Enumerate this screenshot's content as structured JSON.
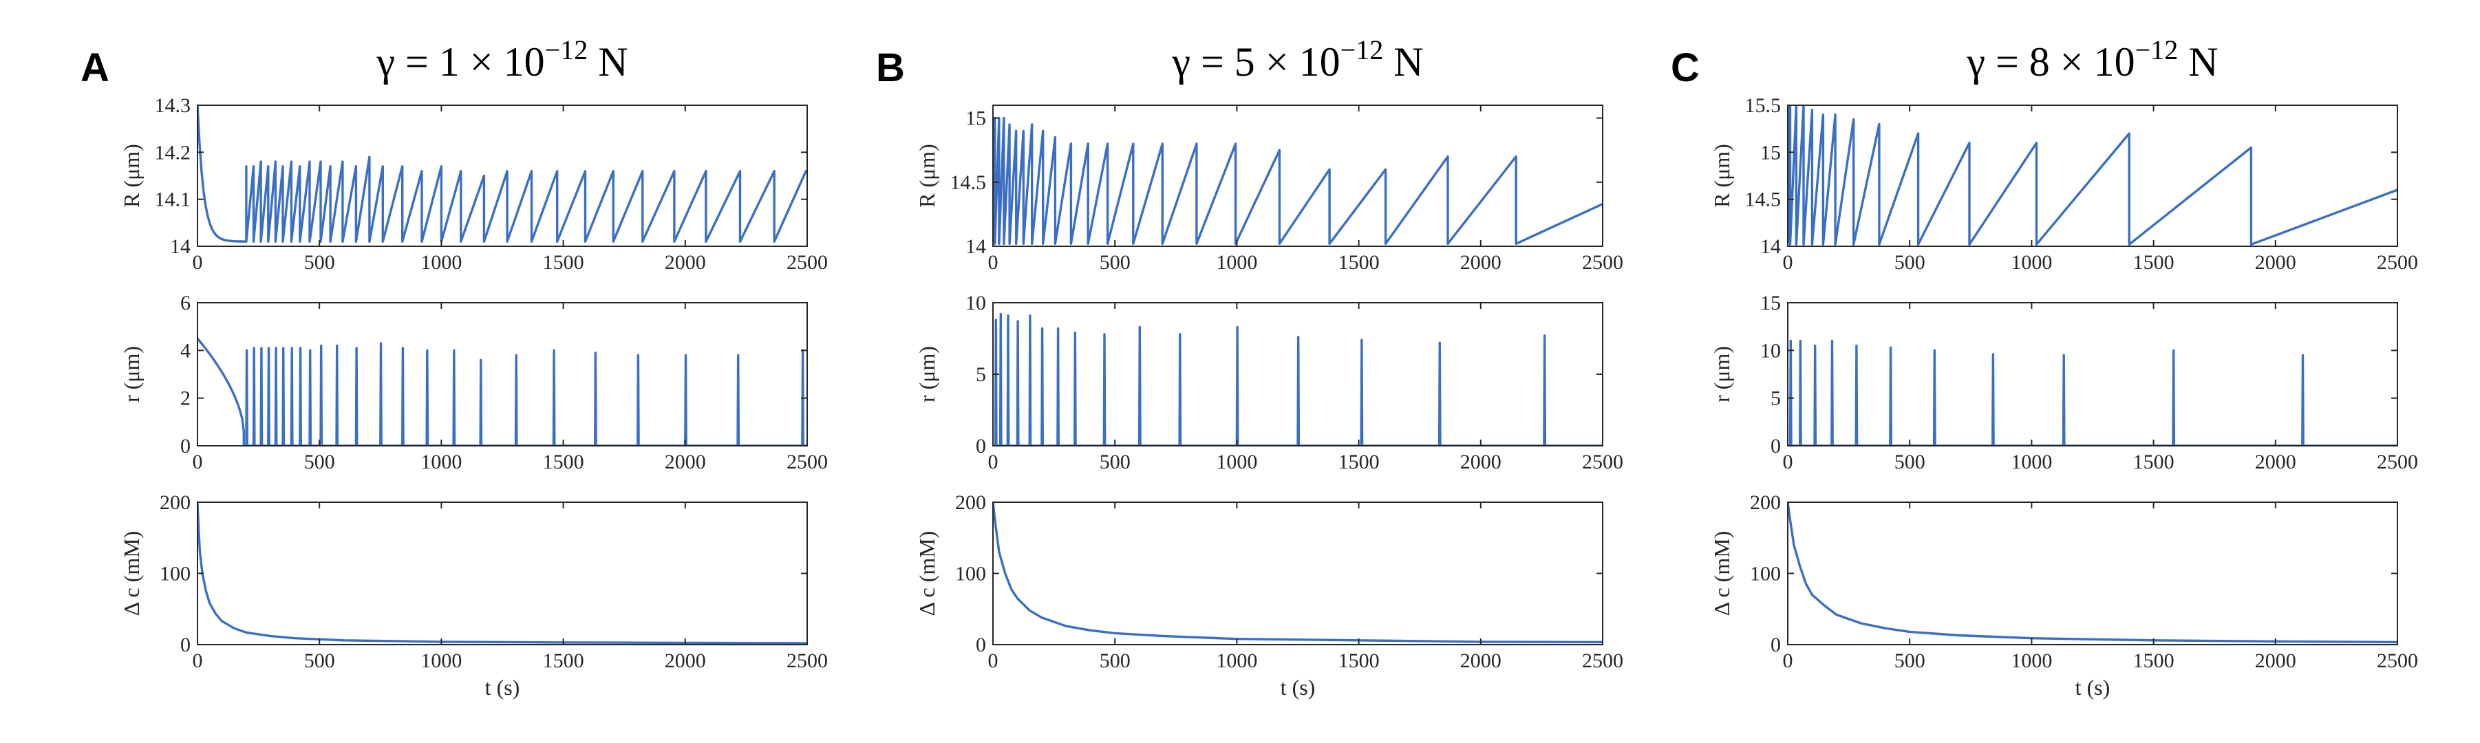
{
  "colors": {
    "series": "#3a6fc4",
    "axis": "#262626"
  },
  "chart_data": [
    {
      "letter": "A",
      "title": {
        "prefix": "γ = 1 × 10",
        "exponent": "−12",
        "unit": " N"
      },
      "subplots": [
        {
          "type": "line",
          "ylabel": "R (μm)",
          "xlabel": "",
          "xlim": [
            0,
            2500
          ],
          "ylim": [
            14,
            14.3
          ],
          "yticks": [
            14,
            14.1,
            14.2,
            14.3
          ],
          "yticklabels": [
            "14",
            "14.1",
            "14.2",
            "14.3"
          ],
          "xticks": [
            0,
            500,
            1000,
            1500,
            2000,
            2500
          ],
          "xticklabels": [
            "0",
            "500",
            "1000",
            "1500",
            "2000",
            "2500"
          ],
          "kind": "sawtooth",
          "start": 14.3,
          "baseline": 14.01,
          "decay_t": 25,
          "first_event": 200,
          "events": [
            200,
            230,
            260,
            290,
            320,
            350,
            385,
            420,
            460,
            505,
            545,
            595,
            650,
            705,
            760,
            840,
            920,
            1000,
            1080,
            1175,
            1270,
            1370,
            1475,
            1590,
            1705,
            1825,
            1955,
            2085,
            2225,
            2365,
            2495
          ],
          "peaks": [
            14.17,
            14.17,
            14.18,
            14.17,
            14.18,
            14.17,
            14.18,
            14.17,
            14.18,
            14.18,
            14.17,
            14.18,
            14.17,
            14.19,
            14.17,
            14.17,
            14.16,
            14.17,
            14.16,
            14.15,
            14.16,
            14.16,
            14.16,
            14.16,
            14.16,
            14.16,
            14.16,
            14.16,
            14.16,
            14.16,
            14.16
          ]
        },
        {
          "type": "line",
          "ylabel": "r (μm)",
          "xlabel": "",
          "xlim": [
            0,
            2500
          ],
          "ylim": [
            0,
            6
          ],
          "yticks": [
            0,
            2,
            4,
            6
          ],
          "yticklabels": [
            "0",
            "2",
            "4",
            "6"
          ],
          "xticks": [
            0,
            500,
            1000,
            1500,
            2000,
            2500
          ],
          "xticklabels": [
            "0",
            "500",
            "1000",
            "1500",
            "2000",
            "2500"
          ],
          "kind": "spikes",
          "pre": {
            "start": 4.5,
            "end": 0.6,
            "t_end": 190
          },
          "events": [
            200,
            230,
            260,
            290,
            320,
            350,
            385,
            420,
            460,
            505,
            570,
            650,
            750,
            840,
            940,
            1050,
            1160,
            1305,
            1460,
            1630,
            1805,
            2000,
            2215,
            2480
          ],
          "peaks": [
            4.0,
            4.1,
            4.1,
            4.1,
            4.1,
            4.1,
            4.1,
            4.1,
            4.0,
            4.2,
            4.2,
            4.1,
            4.3,
            4.1,
            4.0,
            4.0,
            3.6,
            3.8,
            4.0,
            3.9,
            3.8,
            3.8,
            3.8,
            4.0
          ]
        },
        {
          "type": "line",
          "ylabel": "Δ c (mM)",
          "xlabel": "t (s)",
          "xlim": [
            0,
            2500
          ],
          "ylim": [
            0,
            200
          ],
          "yticks": [
            0,
            100,
            200
          ],
          "yticklabels": [
            "0",
            "100",
            "200"
          ],
          "xticks": [
            0,
            500,
            1000,
            1500,
            2000,
            2500
          ],
          "xticklabels": [
            "0",
            "500",
            "1000",
            "1500",
            "2000",
            "2500"
          ],
          "kind": "decay",
          "points": [
            [
              0,
              200
            ],
            [
              5,
              160
            ],
            [
              10,
              130
            ],
            [
              20,
              100
            ],
            [
              35,
              75
            ],
            [
              50,
              58
            ],
            [
              75,
              43
            ],
            [
              100,
              33
            ],
            [
              150,
              23
            ],
            [
              200,
              17
            ],
            [
              300,
              12
            ],
            [
              400,
              9
            ],
            [
              600,
              6
            ],
            [
              800,
              5
            ],
            [
              1000,
              4
            ],
            [
              1500,
              3
            ],
            [
              2000,
              2.5
            ],
            [
              2500,
              2
            ]
          ]
        }
      ]
    },
    {
      "letter": "B",
      "title": {
        "prefix": "γ = 5 × 10",
        "exponent": "−12",
        "unit": " N"
      },
      "subplots": [
        {
          "type": "line",
          "ylabel": "R (μm)",
          "xlabel": "",
          "xlim": [
            0,
            2500
          ],
          "ylim": [
            14,
            15.1
          ],
          "yticks": [
            14,
            14.5,
            15
          ],
          "yticklabels": [
            "14",
            "14.5",
            "15"
          ],
          "xticks": [
            0,
            500,
            1000,
            1500,
            2000,
            2500
          ],
          "xticklabels": [
            "0",
            "500",
            "1000",
            "1500",
            "2000",
            "2500"
          ],
          "kind": "sawtooth",
          "start": 15.0,
          "baseline": 14.02,
          "decay_t": 2,
          "first_event": 8,
          "events": [
            8,
            25,
            45,
            68,
            95,
            125,
            160,
            205,
            255,
            320,
            390,
            470,
            575,
            695,
            835,
            995,
            1175,
            1380,
            1610,
            1865,
            2145,
            2500
          ],
          "peaks": [
            15.0,
            15.0,
            15.0,
            14.95,
            14.9,
            14.9,
            14.95,
            14.9,
            14.85,
            14.8,
            14.8,
            14.8,
            14.8,
            14.8,
            14.8,
            14.8,
            14.75,
            14.6,
            14.6,
            14.7,
            14.7,
            14.33
          ]
        },
        {
          "type": "line",
          "ylabel": "r (μm)",
          "xlabel": "",
          "xlim": [
            0,
            2500
          ],
          "ylim": [
            0,
            10
          ],
          "yticks": [
            0,
            5,
            10
          ],
          "yticklabels": [
            "0",
            "5",
            "10"
          ],
          "xticks": [
            0,
            500,
            1000,
            1500,
            2000,
            2500
          ],
          "xticklabels": [
            "0",
            "500",
            "1000",
            "1500",
            "2000",
            "2500"
          ],
          "kind": "spikes",
          "pre": null,
          "events": [
            10,
            30,
            60,
            100,
            150,
            200,
            265,
            335,
            455,
            600,
            765,
            1000,
            1250,
            1510,
            1830,
            2260
          ],
          "peaks": [
            8.8,
            9.2,
            9.1,
            8.7,
            9.1,
            8.2,
            8.2,
            7.9,
            7.8,
            8.3,
            7.8,
            8.3,
            7.6,
            7.4,
            7.2,
            7.7
          ]
        },
        {
          "type": "line",
          "ylabel": "Δ c (mM)",
          "xlabel": "t (s)",
          "xlim": [
            0,
            2500
          ],
          "ylim": [
            0,
            200
          ],
          "yticks": [
            0,
            100,
            200
          ],
          "yticklabels": [
            "0",
            "100",
            "200"
          ],
          "xticks": [
            0,
            500,
            1000,
            1500,
            2000,
            2500
          ],
          "xticklabels": [
            "0",
            "500",
            "1000",
            "1500",
            "2000",
            "2500"
          ],
          "kind": "decay",
          "points": [
            [
              0,
              200
            ],
            [
              10,
              170
            ],
            [
              25,
              130
            ],
            [
              50,
              100
            ],
            [
              75,
              78
            ],
            [
              100,
              65
            ],
            [
              150,
              48
            ],
            [
              200,
              38
            ],
            [
              300,
              26
            ],
            [
              400,
              20
            ],
            [
              500,
              16
            ],
            [
              700,
              12
            ],
            [
              1000,
              8
            ],
            [
              1500,
              6
            ],
            [
              2000,
              4
            ],
            [
              2500,
              3.5
            ]
          ]
        }
      ]
    },
    {
      "letter": "C",
      "title": {
        "prefix": "γ = 8 × 10",
        "exponent": "−12",
        "unit": " N"
      },
      "subplots": [
        {
          "type": "line",
          "ylabel": "R (μm)",
          "xlabel": "",
          "xlim": [
            0,
            2500
          ],
          "ylim": [
            14,
            15.5
          ],
          "yticks": [
            14,
            14.5,
            15,
            15.5
          ],
          "yticklabels": [
            "14",
            "14.5",
            "15",
            "15.5"
          ],
          "xticks": [
            0,
            500,
            1000,
            1500,
            2000,
            2500
          ],
          "xticklabels": [
            "0",
            "500",
            "1000",
            "1500",
            "2000",
            "2500"
          ],
          "kind": "sawtooth",
          "start": 15.5,
          "baseline": 14.02,
          "decay_t": 2,
          "first_event": 10,
          "events": [
            10,
            35,
            65,
            100,
            145,
            195,
            270,
            375,
            535,
            745,
            1020,
            1400,
            1900,
            2500
          ],
          "peaks": [
            15.5,
            15.5,
            15.5,
            15.45,
            15.4,
            15.4,
            15.35,
            15.3,
            15.2,
            15.1,
            15.1,
            15.2,
            15.05,
            14.6
          ]
        },
        {
          "type": "line",
          "ylabel": "r (μm)",
          "xlabel": "",
          "xlim": [
            0,
            2500
          ],
          "ylim": [
            0,
            15
          ],
          "yticks": [
            0,
            5,
            10,
            15
          ],
          "yticklabels": [
            "0",
            "5",
            "10",
            "15"
          ],
          "xticks": [
            0,
            500,
            1000,
            1500,
            2000,
            2500
          ],
          "xticklabels": [
            "0",
            "500",
            "1000",
            "1500",
            "2000",
            "2500"
          ],
          "kind": "spikes",
          "pre": null,
          "events": [
            10,
            50,
            110,
            180,
            280,
            420,
            600,
            840,
            1130,
            1580,
            2110
          ],
          "peaks": [
            11.0,
            11.0,
            10.5,
            11.0,
            10.5,
            10.3,
            10.0,
            9.6,
            9.5,
            10.0,
            9.5
          ]
        },
        {
          "type": "line",
          "ylabel": "Δ c (mM)",
          "xlabel": "t (s)",
          "xlim": [
            0,
            2500
          ],
          "ylim": [
            0,
            200
          ],
          "yticks": [
            0,
            100,
            200
          ],
          "yticklabels": [
            "0",
            "100",
            "200"
          ],
          "xticks": [
            0,
            500,
            1000,
            1500,
            2000,
            2500
          ],
          "xticklabels": [
            "0",
            "500",
            "1000",
            "1500",
            "2000",
            "2500"
          ],
          "kind": "decay",
          "points": [
            [
              0,
              200
            ],
            [
              10,
              175
            ],
            [
              25,
              140
            ],
            [
              50,
              110
            ],
            [
              75,
              85
            ],
            [
              100,
              70
            ],
            [
              150,
              55
            ],
            [
              200,
              42
            ],
            [
              300,
              30
            ],
            [
              400,
              23
            ],
            [
              500,
              18
            ],
            [
              700,
              13
            ],
            [
              1000,
              9
            ],
            [
              1500,
              6
            ],
            [
              2000,
              4.5
            ],
            [
              2500,
              3.5
            ]
          ]
        }
      ]
    }
  ]
}
